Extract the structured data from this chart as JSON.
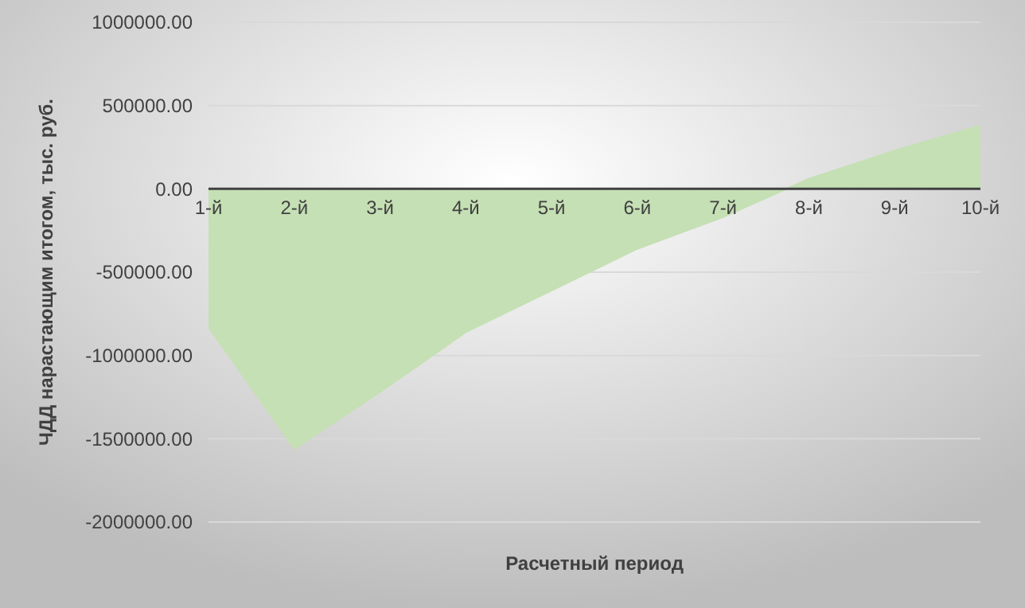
{
  "chart_data": {
    "type": "area",
    "ylabel": "ЧДД нарастающим итогом, тыс. руб.",
    "xlabel": "Расчетный период",
    "categories": [
      "1-й",
      "2-й",
      "3-й",
      "4-й",
      "5-й",
      "6-й",
      "7-й",
      "8-й",
      "9-й",
      "10-й"
    ],
    "series": [
      {
        "color": "#c5e0b4",
        "values": [
          -830000,
          -1560000,
          -1220000,
          -860000,
          -610000,
          -360000,
          -170000,
          60000,
          230000,
          380000
        ]
      }
    ],
    "ylim": [
      -2000000,
      1000000
    ],
    "yticks": [
      {
        "value": -2000000,
        "label": "-2000000.00"
      },
      {
        "value": -1500000,
        "label": "-1500000.00"
      },
      {
        "value": -1000000,
        "label": "-1000000.00"
      },
      {
        "value": -500000,
        "label": "-500000.00"
      },
      {
        "value": 0,
        "label": "0.00"
      },
      {
        "value": 500000,
        "label": "500000.00"
      },
      {
        "value": 1000000,
        "label": "1000000.00"
      }
    ],
    "grid": "y"
  }
}
